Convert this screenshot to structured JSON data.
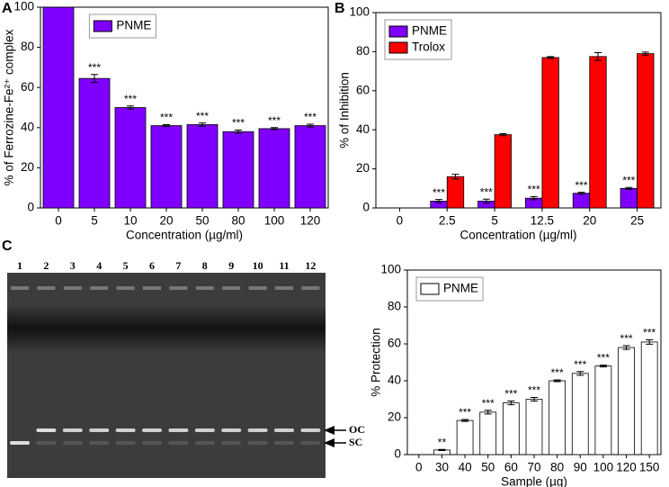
{
  "chart_data": [
    {
      "type": "bar",
      "panel_label": "A",
      "categories": [
        "0",
        "5",
        "10",
        "20",
        "50",
        "80",
        "100",
        "120"
      ],
      "series": [
        {
          "name": "PNME",
          "color": "#7f00ff",
          "values": [
            100,
            64.5,
            50,
            41,
            41.5,
            38,
            39.5,
            41
          ],
          "errors": [
            0,
            2,
            0.8,
            0.5,
            0.8,
            0.8,
            0.5,
            0.7
          ],
          "annotations": [
            null,
            "***",
            "***",
            "***",
            "***",
            "***",
            "***",
            "***"
          ]
        }
      ],
      "xlabel": "Concentration (µg/ml)",
      "ylabel": "% of Ferrozine-Fe²⁺ complex",
      "ylim": [
        0,
        100
      ],
      "yticks": [
        0,
        20,
        40,
        60,
        80,
        100
      ],
      "legend": "upper center"
    },
    {
      "type": "bar",
      "panel_label": "B",
      "categories": [
        "0",
        "2.5",
        "5",
        "12.5",
        "20",
        "25"
      ],
      "series": [
        {
          "name": "PNME",
          "color": "#7f00ff",
          "values": [
            null,
            3.5,
            3.5,
            5,
            7.5,
            10
          ],
          "errors": [
            null,
            0.8,
            1,
            0.8,
            0.5,
            0.5
          ],
          "annotations": [
            null,
            "***",
            "***",
            "***",
            "***",
            "***"
          ]
        },
        {
          "name": "Trolox",
          "color": "#ff0000",
          "values": [
            null,
            16,
            37.5,
            77,
            77.5,
            79
          ],
          "errors": [
            null,
            1.2,
            0.5,
            0.5,
            2,
            0.8
          ]
        }
      ],
      "xlabel": "Concentration (µg/ml)",
      "ylabel": "% of Inhibition",
      "ylim": [
        0,
        100
      ],
      "yticks": [
        0,
        20,
        40,
        60,
        80,
        100
      ],
      "legend": "upper left"
    },
    {
      "type": "bar",
      "categories": [
        "0",
        "30",
        "40",
        "50",
        "60",
        "70",
        "80",
        "90",
        "100",
        "120",
        "150"
      ],
      "series": [
        {
          "name": "PNME",
          "color": "#ffffff",
          "values": [
            null,
            2.5,
            18.5,
            23,
            28,
            30,
            40,
            44,
            48,
            58,
            61
          ],
          "errors": [
            null,
            0.3,
            0.5,
            1,
            1,
            1,
            0.5,
            1,
            0.5,
            1,
            1.2
          ],
          "annotations": [
            null,
            "**",
            "***",
            "***",
            "***",
            "***",
            "***",
            "***",
            "***",
            "***",
            "***"
          ]
        }
      ],
      "xlabel": "Sample (µg)",
      "ylabel": "% Protection",
      "ylim": [
        0,
        100
      ],
      "yticks": [
        0,
        20,
        40,
        60,
        80,
        100
      ],
      "legend": "upper left"
    }
  ],
  "gel": {
    "panel_label": "C",
    "lanes": [
      "1",
      "2",
      "3",
      "4",
      "5",
      "6",
      "7",
      "8",
      "9",
      "10",
      "11",
      "12"
    ],
    "bands": [
      "OC",
      "SC"
    ]
  }
}
